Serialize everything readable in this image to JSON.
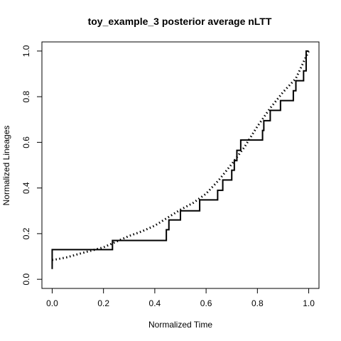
{
  "chart_data": {
    "type": "line",
    "title": "toy_example_3  posterior average nLTT",
    "xlabel": "Normalized Time",
    "ylabel": "Normalized Lineages",
    "xlim": [
      -0.04,
      1.04
    ],
    "ylim": [
      -0.04,
      1.04
    ],
    "xticks": [
      "0.0",
      "0.2",
      "0.4",
      "0.6",
      "0.8",
      "1.0"
    ],
    "yticks": [
      "0.0",
      "0.2",
      "0.4",
      "0.6",
      "0.8",
      "1.0"
    ],
    "grid": false,
    "legend": "none",
    "series": [
      {
        "style": "step-solid",
        "x": [
          0.0,
          0.0,
          0.235,
          0.235,
          0.445,
          0.445,
          0.455,
          0.455,
          0.5,
          0.5,
          0.575,
          0.575,
          0.645,
          0.645,
          0.665,
          0.665,
          0.7,
          0.7,
          0.71,
          0.71,
          0.72,
          0.72,
          0.735,
          0.735,
          0.82,
          0.82,
          0.825,
          0.825,
          0.85,
          0.85,
          0.89,
          0.89,
          0.94,
          0.94,
          0.95,
          0.95,
          0.98,
          0.98,
          0.99,
          0.99,
          1.0
        ],
        "y": [
          0.045,
          0.13,
          0.13,
          0.17,
          0.17,
          0.217,
          0.217,
          0.26,
          0.26,
          0.3,
          0.3,
          0.348,
          0.348,
          0.39,
          0.39,
          0.435,
          0.435,
          0.478,
          0.478,
          0.52,
          0.52,
          0.565,
          0.565,
          0.61,
          0.61,
          0.652,
          0.652,
          0.695,
          0.695,
          0.74,
          0.74,
          0.783,
          0.783,
          0.826,
          0.826,
          0.87,
          0.87,
          0.913,
          0.913,
          1.0,
          1.0
        ]
      },
      {
        "style": "dotted",
        "x": [
          0.0,
          0.02,
          0.06,
          0.1,
          0.15,
          0.2,
          0.25,
          0.3,
          0.35,
          0.4,
          0.45,
          0.5,
          0.55,
          0.6,
          0.65,
          0.7,
          0.75,
          0.8,
          0.85,
          0.9,
          0.95,
          0.975,
          1.0
        ],
        "y": [
          0.085,
          0.088,
          0.097,
          0.11,
          0.125,
          0.14,
          0.165,
          0.19,
          0.21,
          0.235,
          0.27,
          0.305,
          0.335,
          0.375,
          0.435,
          0.505,
          0.58,
          0.67,
          0.75,
          0.82,
          0.88,
          0.94,
          1.0
        ]
      }
    ]
  }
}
